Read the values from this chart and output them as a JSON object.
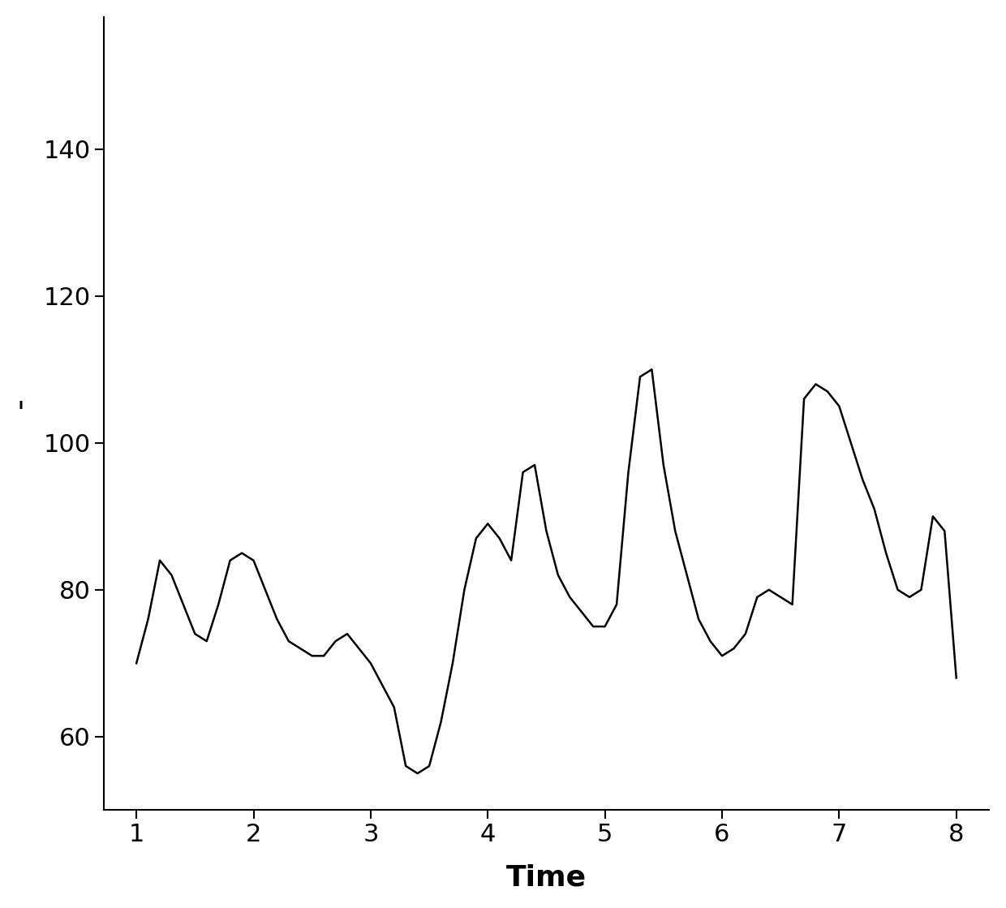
{
  "title": "",
  "xlabel": "Time",
  "ylabel": "'",
  "xlim": [
    0.72,
    8.28
  ],
  "ylim": [
    50,
    158
  ],
  "yticks": [
    60,
    80,
    100,
    120,
    140
  ],
  "xticks": [
    1,
    2,
    3,
    4,
    5,
    6,
    7,
    8
  ],
  "line_color": "#000000",
  "line_width": 1.8,
  "background_color": "#ffffff",
  "x": [
    1.0,
    1.1,
    1.2,
    1.3,
    1.4,
    1.5,
    1.6,
    1.7,
    1.8,
    1.9,
    2.0,
    2.1,
    2.2,
    2.3,
    2.4,
    2.5,
    2.6,
    2.7,
    2.8,
    2.9,
    3.0,
    3.1,
    3.2,
    3.3,
    3.4,
    3.5,
    3.6,
    3.7,
    3.8,
    3.9,
    4.0,
    4.1,
    4.2,
    4.3,
    4.4,
    4.5,
    4.6,
    4.7,
    4.8,
    4.9,
    5.0,
    5.1,
    5.2,
    5.3,
    5.4,
    5.5,
    5.6,
    5.7,
    5.8,
    5.9,
    6.0,
    6.1,
    6.2,
    6.3,
    6.4,
    6.5,
    6.6,
    6.7,
    6.8,
    6.9,
    7.0,
    7.1,
    7.2,
    7.3,
    7.4,
    7.5,
    7.6,
    7.7,
    7.8,
    7.9,
    8.0
  ],
  "y": [
    70,
    76,
    84,
    82,
    78,
    74,
    73,
    78,
    84,
    85,
    84,
    80,
    76,
    73,
    72,
    71,
    71,
    73,
    74,
    72,
    70,
    67,
    64,
    56,
    55,
    56,
    62,
    70,
    80,
    87,
    89,
    87,
    84,
    96,
    97,
    88,
    82,
    79,
    77,
    75,
    75,
    78,
    96,
    109,
    110,
    97,
    88,
    82,
    76,
    73,
    71,
    72,
    74,
    79,
    80,
    79,
    78,
    106,
    108,
    107,
    105,
    100,
    95,
    91,
    85,
    80,
    79,
    80,
    90,
    88,
    68
  ]
}
